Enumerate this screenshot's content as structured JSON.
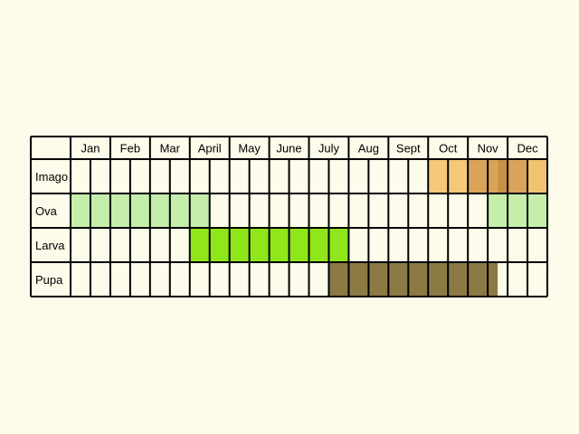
{
  "chart_data": {
    "type": "table",
    "months": [
      "Jan",
      "Feb",
      "Mar",
      "April",
      "May",
      "June",
      "July",
      "Aug",
      "Sept",
      "Oct",
      "Nov",
      "Dec"
    ],
    "periods_per_month": 2,
    "stages": [
      {
        "name": "Imago",
        "spans": [
          {
            "start": 18,
            "end": 20,
            "color": "#f5c87a"
          },
          {
            "start": 20,
            "end": 21.5,
            "color": "#d9a45a"
          },
          {
            "start": 21.5,
            "end": 22,
            "color": "#c98f45"
          },
          {
            "start": 22,
            "end": 23,
            "color": "#d9a45a"
          },
          {
            "start": 23,
            "end": 24,
            "color": "#f0c370"
          }
        ]
      },
      {
        "name": "Ova",
        "spans": [
          {
            "start": 0,
            "end": 7,
            "color": "#c5eeab"
          },
          {
            "start": 21,
            "end": 24,
            "color": "#c5eeab"
          }
        ]
      },
      {
        "name": "Larva",
        "spans": [
          {
            "start": 6,
            "end": 14,
            "color": "#8fe61a"
          }
        ]
      },
      {
        "name": "Pupa",
        "spans": [
          {
            "start": 13,
            "end": 21.5,
            "color": "#8c7a45"
          }
        ]
      }
    ]
  }
}
